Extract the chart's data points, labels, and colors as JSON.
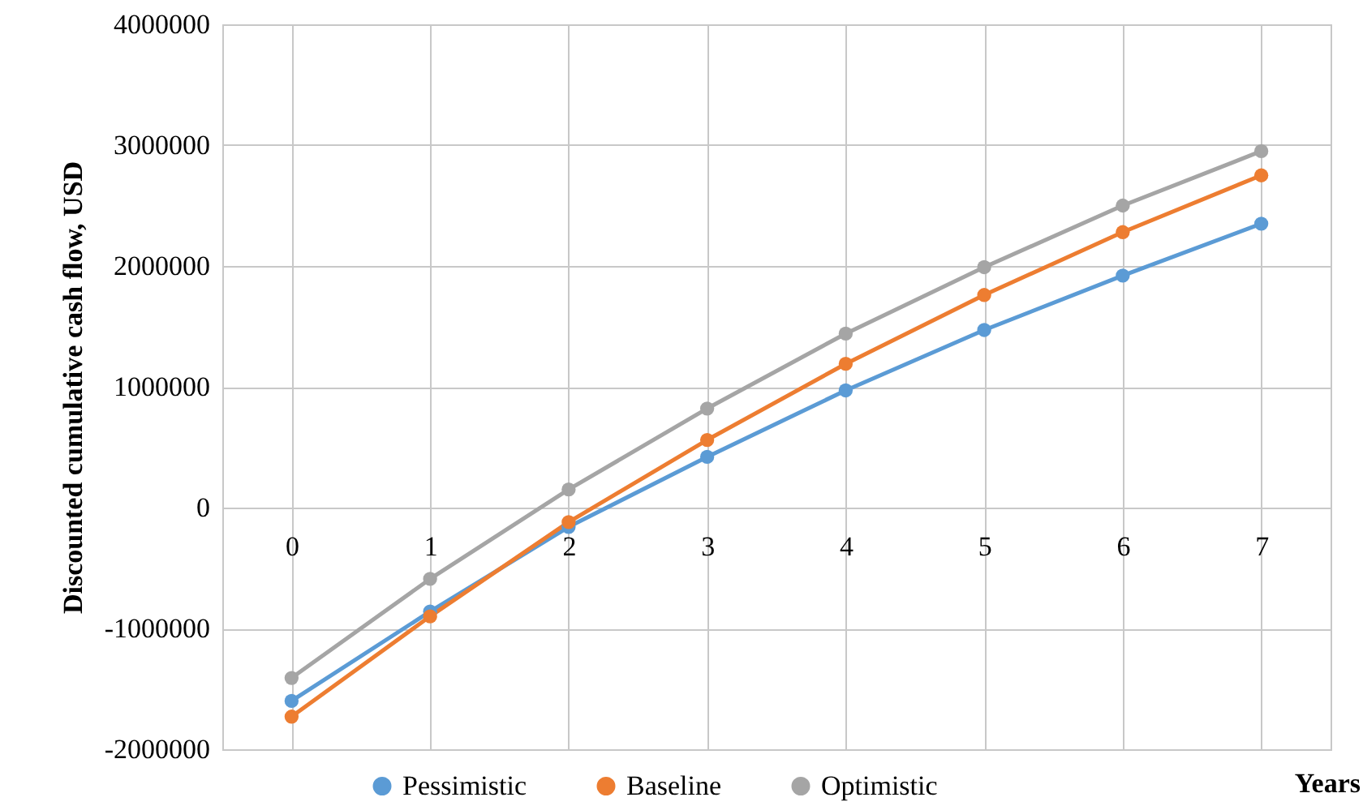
{
  "chart_data": {
    "type": "line",
    "ylabel": "Discounted cumulative cash flow, USD",
    "xlabel": "Years",
    "categories": [
      "0",
      "1",
      "2",
      "3",
      "4",
      "5",
      "6",
      "7"
    ],
    "series": [
      {
        "name": "Pessimistic",
        "color": "#5b9bd5",
        "values": [
          -1600000,
          -860000,
          -160000,
          420000,
          970000,
          1470000,
          1920000,
          2350000
        ]
      },
      {
        "name": "Baseline",
        "color": "#ed7d31",
        "values": [
          -1730000,
          -900000,
          -120000,
          560000,
          1190000,
          1760000,
          2280000,
          2750000
        ]
      },
      {
        "name": "Optimistic",
        "color": "#a5a5a5",
        "values": [
          -1410000,
          -590000,
          150000,
          820000,
          1440000,
          1990000,
          2500000,
          2950000
        ]
      }
    ],
    "ylim": [
      -2000000,
      4000000
    ],
    "yticks": [
      -2000000,
      -1000000,
      0,
      1000000,
      2000000,
      3000000,
      4000000
    ],
    "grid": true,
    "legend": "bottom",
    "marker": "circle",
    "line_style": "solid"
  }
}
